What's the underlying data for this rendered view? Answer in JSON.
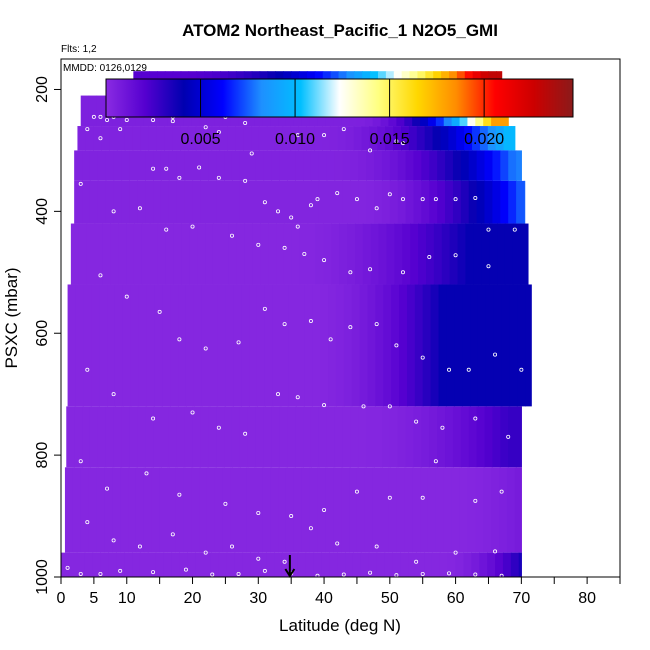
{
  "chart_data": {
    "type": "heatmap",
    "title": "ATOM2 Northeast_Pacific_1 N2O5_GMI",
    "flights_label": "Flts: 1,2",
    "dates_label": "MMDD: 0126,0129",
    "xlabel": "Latitude (deg N)",
    "ylabel": "PSXC (mbar)",
    "xlim": [
      0,
      85
    ],
    "ylim": [
      1000,
      150
    ],
    "x_ticks": [
      0,
      5,
      10,
      20,
      30,
      40,
      50,
      60,
      70,
      80
    ],
    "y_ticks": [
      200,
      400,
      600,
      800,
      1000
    ],
    "colorbar": {
      "min": 0.0,
      "max": 0.0247,
      "ticks": [
        0.005,
        0.01,
        0.015,
        0.02
      ],
      "tick_labels": [
        "0.005",
        "0.010",
        "0.015",
        "0.020"
      ],
      "colors": [
        "#8a2be2",
        "#5500d0",
        "#0000b0",
        "#0000ff",
        "#1e90ff",
        "#00bfff",
        "#ffffff",
        "#ffff80",
        "#ffd700",
        "#ff8c00",
        "#ff0000",
        "#cc0000",
        "#8b1a1a"
      ]
    },
    "field_layers": [
      {
        "p_top": 170,
        "p_bot": 210,
        "lat_min": 11,
        "lat_max": 67,
        "v_south": 0.002,
        "v_north": 0.023,
        "ramp_start": 18,
        "ramp_end": 65
      },
      {
        "p_top": 210,
        "p_bot": 260,
        "lat_min": 3,
        "lat_max": 68,
        "v_south": 0.0005,
        "v_north": 0.018,
        "ramp_start": 45,
        "ramp_end": 66
      },
      {
        "p_top": 260,
        "p_bot": 300,
        "lat_min": 2.5,
        "lat_max": 69,
        "v_south": 0.0004,
        "v_north": 0.01,
        "ramp_start": 40,
        "ramp_end": 68
      },
      {
        "p_top": 300,
        "p_bot": 350,
        "lat_min": 2,
        "lat_max": 70,
        "v_south": 0.0004,
        "v_north": 0.008,
        "ramp_start": 42,
        "ramp_end": 69
      },
      {
        "p_top": 350,
        "p_bot": 420,
        "lat_min": 2,
        "lat_max": 70.5,
        "v_south": 0.0003,
        "v_north": 0.0075,
        "ramp_start": 45,
        "ramp_end": 70
      },
      {
        "p_top": 420,
        "p_bot": 520,
        "lat_min": 1.5,
        "lat_max": 71,
        "v_south": 0.0002,
        "v_north": 0.004,
        "ramp_start": 35,
        "ramp_end": 62
      },
      {
        "p_top": 520,
        "p_bot": 720,
        "lat_min": 1,
        "lat_max": 71.5,
        "v_south": 0.0002,
        "v_north": 0.004,
        "ramp_start": 38,
        "ramp_end": 58
      },
      {
        "p_top": 720,
        "p_bot": 820,
        "lat_min": 0.8,
        "lat_max": 70,
        "v_south": 0.0002,
        "v_north": 0.0028,
        "ramp_start": 45,
        "ramp_end": 68
      },
      {
        "p_top": 820,
        "p_bot": 960,
        "lat_min": 0.6,
        "lat_max": 70,
        "v_south": 0.0002,
        "v_north": 0.0008,
        "ramp_start": 60,
        "ramp_end": 70
      },
      {
        "p_top": 960,
        "p_bot": 1010,
        "lat_min": 0,
        "lat_max": 70,
        "v_south": 0.0002,
        "v_north": 0.0035,
        "ramp_start": 58,
        "ramp_end": 70
      }
    ],
    "observations": [
      [
        5,
        245
      ],
      [
        6,
        245
      ],
      [
        7,
        250
      ],
      [
        8,
        245
      ],
      [
        10,
        250
      ],
      [
        12,
        240
      ],
      [
        14,
        250
      ],
      [
        17,
        252
      ],
      [
        18,
        215
      ],
      [
        19,
        215
      ],
      [
        22,
        262
      ],
      [
        25,
        245
      ],
      [
        24,
        270
      ],
      [
        29,
        305
      ],
      [
        36,
        275
      ],
      [
        40,
        275
      ],
      [
        43,
        265
      ],
      [
        47,
        300
      ],
      [
        51,
        285
      ],
      [
        52,
        288
      ],
      [
        59,
        240
      ],
      [
        62,
        240
      ],
      [
        63,
        243
      ],
      [
        17,
        245
      ],
      [
        28,
        255
      ],
      [
        4,
        265
      ],
      [
        6,
        280
      ],
      [
        9,
        265
      ],
      [
        14,
        330
      ],
      [
        16,
        330
      ],
      [
        18,
        345
      ],
      [
        21,
        328
      ],
      [
        24,
        345
      ],
      [
        28,
        350
      ],
      [
        31,
        385
      ],
      [
        33,
        400
      ],
      [
        35,
        410
      ],
      [
        36,
        425
      ],
      [
        38,
        390
      ],
      [
        39,
        380
      ],
      [
        42,
        370
      ],
      [
        45,
        380
      ],
      [
        48,
        395
      ],
      [
        50,
        372
      ],
      [
        52,
        380
      ],
      [
        55,
        380
      ],
      [
        57,
        380
      ],
      [
        60,
        380
      ],
      [
        63,
        378
      ],
      [
        65,
        430
      ],
      [
        69,
        430
      ],
      [
        3,
        355
      ],
      [
        8,
        400
      ],
      [
        12,
        395
      ],
      [
        16,
        430
      ],
      [
        20,
        425
      ],
      [
        26,
        440
      ],
      [
        30,
        455
      ],
      [
        34,
        460
      ],
      [
        37,
        470
      ],
      [
        40,
        480
      ],
      [
        44,
        500
      ],
      [
        47,
        495
      ],
      [
        52,
        500
      ],
      [
        56,
        475
      ],
      [
        60,
        472
      ],
      [
        65,
        490
      ],
      [
        6,
        505
      ],
      [
        10,
        540
      ],
      [
        15,
        565
      ],
      [
        18,
        610
      ],
      [
        22,
        625
      ],
      [
        27,
        615
      ],
      [
        31,
        560
      ],
      [
        34,
        585
      ],
      [
        38,
        580
      ],
      [
        41,
        610
      ],
      [
        44,
        590
      ],
      [
        48,
        585
      ],
      [
        51,
        620
      ],
      [
        55,
        640
      ],
      [
        59,
        660
      ],
      [
        62,
        660
      ],
      [
        66,
        635
      ],
      [
        70,
        660
      ],
      [
        4,
        660
      ],
      [
        8,
        700
      ],
      [
        14,
        740
      ],
      [
        20,
        730
      ],
      [
        24,
        755
      ],
      [
        28,
        765
      ],
      [
        33,
        700
      ],
      [
        36,
        705
      ],
      [
        40,
        718
      ],
      [
        46,
        720
      ],
      [
        50,
        720
      ],
      [
        54,
        745
      ],
      [
        58,
        755
      ],
      [
        63,
        740
      ],
      [
        68,
        770
      ],
      [
        3,
        810
      ],
      [
        7,
        855
      ],
      [
        13,
        830
      ],
      [
        18,
        865
      ],
      [
        25,
        880
      ],
      [
        30,
        895
      ],
      [
        35,
        900
      ],
      [
        40,
        890
      ],
      [
        45,
        860
      ],
      [
        50,
        870
      ],
      [
        55,
        870
      ],
      [
        57,
        810
      ],
      [
        63,
        875
      ],
      [
        67,
        860
      ],
      [
        4,
        910
      ],
      [
        8,
        940
      ],
      [
        12,
        950
      ],
      [
        17,
        930
      ],
      [
        22,
        960
      ],
      [
        26,
        950
      ],
      [
        30,
        970
      ],
      [
        34,
        975
      ],
      [
        38,
        920
      ],
      [
        42,
        945
      ],
      [
        48,
        950
      ],
      [
        54,
        975
      ],
      [
        60,
        960
      ],
      [
        66,
        958
      ],
      [
        1,
        985
      ],
      [
        3,
        995
      ],
      [
        6,
        995
      ],
      [
        9,
        990
      ],
      [
        14,
        992
      ],
      [
        19,
        988
      ],
      [
        23,
        996
      ],
      [
        27,
        995
      ],
      [
        31,
        990
      ],
      [
        35,
        994
      ],
      [
        39,
        998
      ],
      [
        43,
        996
      ],
      [
        47,
        993
      ],
      [
        51,
        997
      ],
      [
        55,
        995
      ],
      [
        59,
        994
      ],
      [
        63,
        996
      ],
      [
        67,
        998
      ]
    ],
    "marker": {
      "lat": 34.8,
      "label_text": ""
    },
    "grid": false,
    "legend": "colorbar-top"
  }
}
